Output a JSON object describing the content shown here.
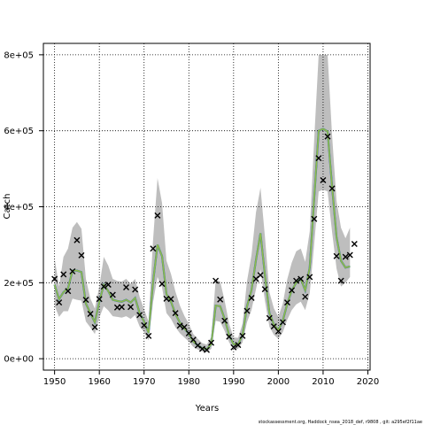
{
  "chart_data": {
    "type": "line",
    "title": "",
    "xlabel": "Years",
    "ylabel": "Catch",
    "xlim": [
      1947.5,
      2020.5
    ],
    "ylim": [
      -30000,
      830000
    ],
    "x_ticks": [
      1950,
      1960,
      1970,
      1980,
      1990,
      2000,
      2010,
      2020
    ],
    "y_ticks": [
      0,
      200000,
      400000,
      600000,
      800000
    ],
    "y_tick_labels": [
      "0e+00",
      "2e+05",
      "4e+05",
      "6e+05",
      "8e+05"
    ],
    "grid": true,
    "footnote": "stockassessment.org, Haddock_nsea_2018_def, r9808 , git: a295ef2f11ae",
    "colors": {
      "band": "#bebebe",
      "green_line": "#8fb94a",
      "blue_line": "#3b5ba8",
      "teal_line": "#2aa198",
      "observed": "#000000",
      "grid": "#000000"
    },
    "observed_catch": {
      "x": [
        1950,
        1951,
        1952,
        1953,
        1954,
        1955,
        1956,
        1957,
        1958,
        1959,
        1960,
        1961,
        1962,
        1963,
        1964,
        1965,
        1966,
        1967,
        1968,
        1969,
        1970,
        1971,
        1972,
        1973,
        1974,
        1975,
        1976,
        1977,
        1978,
        1979,
        1980,
        1981,
        1982,
        1983,
        1984,
        1985,
        1986,
        1987,
        1988,
        1989,
        1990,
        1991,
        1992,
        1993,
        1994,
        1995,
        1996,
        1997,
        1998,
        1999,
        2000,
        2001,
        2002,
        2003,
        2004,
        2005,
        2006,
        2007,
        2008,
        2009,
        2010,
        2011,
        2012,
        2013,
        2014,
        2015,
        2016,
        2017
      ],
      "y": [
        210000,
        148000,
        222000,
        178000,
        230000,
        312000,
        272000,
        155000,
        118000,
        83000,
        157000,
        190000,
        195000,
        168000,
        135000,
        136000,
        188000,
        136000,
        182000,
        115000,
        88000,
        60000,
        290000,
        377000,
        197000,
        158000,
        157000,
        120000,
        87000,
        83000,
        67000,
        50000,
        35000,
        26000,
        23000,
        42000,
        205000,
        156000,
        100000,
        58000,
        30000,
        36000,
        60000,
        126000,
        160000,
        210000,
        220000,
        183000,
        107000,
        85000,
        72000,
        96000,
        148000,
        180000,
        205000,
        210000,
        163000,
        215000,
        368000,
        528000,
        470000,
        585000,
        448000,
        270000,
        205000,
        268000,
        273000,
        302000
      ]
    },
    "estimated_catch": {
      "x": [
        1950,
        1951,
        1952,
        1953,
        1954,
        1955,
        1956,
        1957,
        1958,
        1959,
        1960,
        1961,
        1962,
        1963,
        1964,
        1965,
        1966,
        1967,
        1968,
        1969,
        1970,
        1971,
        1972,
        1973,
        1974,
        1975,
        1976,
        1977,
        1978,
        1979,
        1980,
        1981,
        1982,
        1983,
        1984,
        1985,
        1986,
        1987,
        1988,
        1989,
        1990,
        1991,
        1992,
        1993,
        1994,
        1995,
        1996,
        1997,
        1998,
        1999,
        2000,
        2001,
        2002,
        2003,
        2004,
        2005,
        2006,
        2007,
        2008,
        2009,
        2010,
        2011,
        2012,
        2013,
        2014,
        2015,
        2016
      ],
      "y": [
        195000,
        157000,
        175000,
        185000,
        232000,
        232000,
        228000,
        145000,
        120000,
        96000,
        150000,
        195000,
        178000,
        155000,
        152000,
        150000,
        155000,
        148000,
        160000,
        120000,
        98000,
        68000,
        200000,
        300000,
        270000,
        170000,
        150000,
        118000,
        95000,
        80000,
        65000,
        45000,
        35000,
        28000,
        25000,
        38000,
        140000,
        138000,
        105000,
        62000,
        38000,
        38000,
        62000,
        138000,
        180000,
        260000,
        330000,
        220000,
        120000,
        90000,
        75000,
        100000,
        145000,
        180000,
        200000,
        210000,
        180000,
        240000,
        420000,
        600000,
        605000,
        598000,
        455000,
        320000,
        258000,
        240000,
        243000
      ],
      "upper": [
        265000,
        190000,
        268000,
        290000,
        345000,
        360000,
        342000,
        210000,
        158000,
        132000,
        190000,
        268000,
        245000,
        210000,
        205000,
        203000,
        210000,
        197000,
        210000,
        163000,
        130000,
        98000,
        310000,
        475000,
        410000,
        258000,
        223000,
        177000,
        140000,
        113000,
        92000,
        65000,
        52000,
        41000,
        37000,
        57000,
        208000,
        203000,
        153000,
        92000,
        56000,
        55000,
        92000,
        205000,
        272000,
        385000,
        450000,
        322000,
        175000,
        133000,
        110000,
        145000,
        210000,
        253000,
        283000,
        290000,
        255000,
        335000,
        575000,
        800000,
        800000,
        800000,
        590000,
        415000,
        345000,
        317000,
        345000
      ],
      "lower": [
        140000,
        110000,
        125000,
        125000,
        158000,
        155000,
        153000,
        98000,
        82000,
        65000,
        108000,
        138000,
        127000,
        112000,
        110000,
        108000,
        112000,
        105000,
        115000,
        85000,
        70000,
        48000,
        148000,
        215000,
        188000,
        120000,
        105000,
        83000,
        67000,
        56000,
        45000,
        31000,
        24000,
        19000,
        17000,
        26000,
        100000,
        97000,
        73000,
        43000,
        26000,
        26000,
        43000,
        96000,
        128000,
        183000,
        235000,
        153000,
        84000,
        63000,
        52000,
        70000,
        103000,
        128000,
        143000,
        150000,
        128000,
        172000,
        300000,
        440000,
        445000,
        440000,
        335000,
        237000,
        190000,
        200000,
        215000
      ]
    }
  }
}
